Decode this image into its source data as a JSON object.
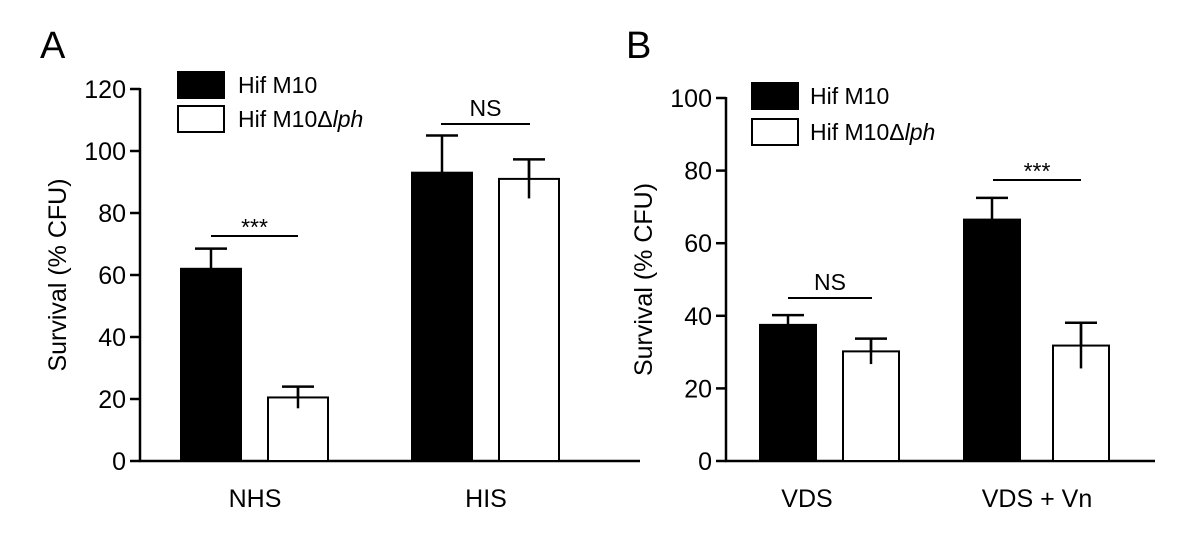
{
  "chart_data": [
    {
      "type": "bar",
      "panel": "A",
      "ylabel": "Survival (% CFU)",
      "ylim": [
        0,
        120
      ],
      "yticks": [
        "0",
        "20",
        "40",
        "60",
        "80",
        "100",
        "120"
      ],
      "legend_placement": "top-left",
      "categories": [
        "NHS",
        "HIS"
      ],
      "series": [
        {
          "name": "Hif M10",
          "name_italic": "",
          "fill": "#000000",
          "values": [
            62,
            93
          ],
          "errors": [
            6.5,
            12
          ]
        },
        {
          "name": "Hif M10Δ",
          "name_italic": "lph",
          "fill": "#ffffff",
          "values": [
            20.5,
            91
          ],
          "errors": [
            3.5,
            6.3
          ]
        }
      ],
      "annotations": [
        {
          "label": "***",
          "category": 0
        },
        {
          "label": "NS",
          "category": 1
        }
      ]
    },
    {
      "type": "bar",
      "panel": "B",
      "ylabel": "Survival (% CFU)",
      "ylim": [
        0,
        100
      ],
      "yticks": [
        "0",
        "20",
        "40",
        "60",
        "80",
        "100"
      ],
      "legend_placement": "top-left",
      "categories": [
        "VDS",
        "VDS +  Vn"
      ],
      "series": [
        {
          "name": "Hif M10",
          "name_italic": "",
          "fill": "#000000",
          "values": [
            37.5,
            66.5
          ],
          "errors": [
            2.7,
            6
          ]
        },
        {
          "name": "Hif M10Δ",
          "name_italic": "lph",
          "fill": "#ffffff",
          "values": [
            30.2,
            31.8
          ],
          "errors": [
            3.5,
            6.3
          ]
        }
      ],
      "annotations": [
        {
          "label": "NS",
          "category": 0
        },
        {
          "label": "***",
          "category": 1
        }
      ]
    }
  ]
}
